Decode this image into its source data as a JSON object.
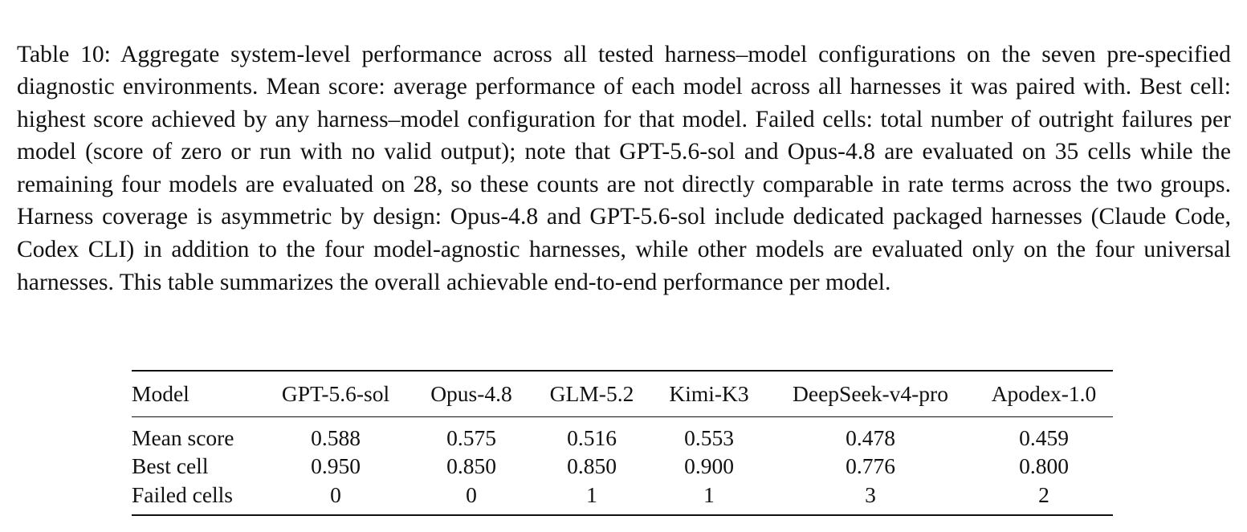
{
  "caption": {
    "label": "Table 10:",
    "text": "Aggregate system-level performance across all tested harness–model configurations on the seven pre-specified diagnostic environments. Mean score: average performance of each model across all harnesses it was paired with. Best cell: highest score achieved by any harness–model configuration for that model. Failed cells: total number of outright failures per model (score of zero or run with no valid output); note that GPT-5.6-sol and Opus-4.8 are evaluated on 35 cells while the remaining four models are evaluated on 28, so these counts are not directly comparable in rate terms across the two groups. Harness coverage is asymmetric by design: Opus-4.8 and GPT-5.6-sol include dedicated packaged harnesses (Claude Code, Codex CLI) in addition to the four model-agnostic harnesses, while other models are evaluated only on the four universal harnesses. This table summarizes the overall achievable end-to-end performance per model."
  },
  "table": {
    "header": {
      "model": "Model",
      "columns": [
        "GPT-5.6-sol",
        "Opus-4.8",
        "GLM-5.2",
        "Kimi-K3",
        "DeepSeek-v4-pro",
        "Apodex-1.0"
      ]
    },
    "rows": [
      {
        "label": "Mean score",
        "values": [
          "0.588",
          "0.575",
          "0.516",
          "0.553",
          "0.478",
          "0.459"
        ]
      },
      {
        "label": "Best cell",
        "values": [
          "0.950",
          "0.850",
          "0.850",
          "0.900",
          "0.776",
          "0.800"
        ]
      },
      {
        "label": "Failed cells",
        "values": [
          "0",
          "0",
          "1",
          "1",
          "3",
          "2"
        ]
      }
    ]
  }
}
